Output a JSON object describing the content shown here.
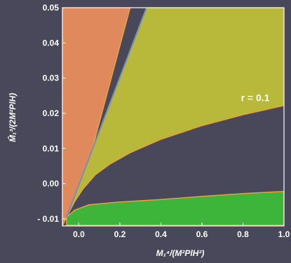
{
  "chart_data": {
    "type": "area",
    "title": "",
    "xlabel": "M₁⁴/(M²PlH²)",
    "ylabel": "M̂₁³/(2M²PlH)",
    "xlim": [
      -0.08,
      1.0
    ],
    "ylim": [
      -0.012,
      0.05
    ],
    "x_ticks": [
      0.0,
      0.2,
      0.4,
      0.6,
      0.8,
      1.0
    ],
    "x_tick_labels": [
      "0.0",
      "0.2",
      "0.4",
      "0.6",
      "0.8",
      "1.0"
    ],
    "y_ticks": [
      -0.01,
      0.0,
      0.01,
      0.02,
      0.03,
      0.04,
      0.05
    ],
    "y_tick_labels": [
      "- 0.01",
      "0.00",
      "0.01",
      "0.02",
      "0.03",
      "0.04",
      "0.05"
    ],
    "grid": false,
    "annotation": "r = 0.1",
    "annotation_point": {
      "x": 0.86,
      "y": 0.0235
    },
    "colors": {
      "background": "#48485a",
      "orange_region": "#e0895c",
      "yellow_region": "#b8b83a",
      "green_region": "#3db43a",
      "boundary": "#e8a23c",
      "line": "#7a8fb4"
    },
    "series": [
      {
        "color": "orange_region",
        "boundary": [
          [
            -0.08,
            0.05
          ],
          [
            0.25,
            0.05
          ],
          [
            0.02,
            0.0
          ],
          [
            -0.06,
            -0.0095
          ],
          [
            -0.08,
            -0.012
          ]
        ]
      },
      {
        "color": "yellow_region",
        "boundary": [
          [
            0.33,
            0.05
          ],
          [
            1.0,
            0.05
          ],
          [
            1.0,
            0.0222
          ],
          [
            0.8,
            0.0196
          ],
          [
            0.6,
            0.0165
          ],
          [
            0.4,
            0.0126
          ],
          [
            0.25,
            0.0088
          ],
          [
            0.15,
            0.0055
          ],
          [
            0.08,
            0.0025
          ],
          [
            0.02,
            -0.0015
          ],
          [
            -0.02,
            -0.005
          ],
          [
            -0.06,
            -0.0095
          ]
        ]
      },
      {
        "color": "green_region",
        "boundary": [
          [
            -0.06,
            -0.0095
          ],
          [
            -0.02,
            -0.0075
          ],
          [
            0.05,
            -0.006
          ],
          [
            0.2,
            -0.0052
          ],
          [
            0.4,
            -0.0045
          ],
          [
            0.6,
            -0.0036
          ],
          [
            0.8,
            -0.0028
          ],
          [
            1.0,
            -0.0022
          ],
          [
            1.0,
            -0.0118
          ],
          [
            -0.06,
            -0.0118
          ]
        ]
      },
      {
        "color": "line",
        "points": [
          [
            -0.06,
            -0.0095
          ],
          [
            0.33,
            0.05
          ]
        ]
      }
    ]
  }
}
